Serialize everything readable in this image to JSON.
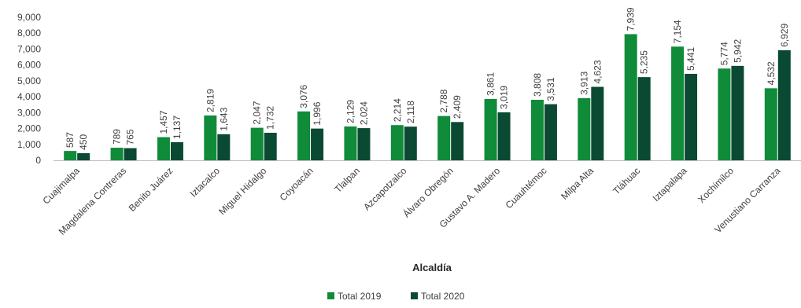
{
  "chart_data": {
    "type": "bar",
    "title": "",
    "xlabel": "Alcaldía",
    "ylabel": "",
    "ylim": [
      0,
      9000
    ],
    "yticks": [
      0,
      1000,
      2000,
      3000,
      4000,
      5000,
      6000,
      7000,
      8000,
      9000
    ],
    "ytick_labels": [
      "0",
      "1,000",
      "2,000",
      "3,000",
      "4,000",
      "5,000",
      "6,000",
      "7,000",
      "8,000",
      "9,000"
    ],
    "grid": false,
    "legend_position": "bottom-center",
    "categories": [
      "Cuajimalpa",
      "Magdalena Contreras",
      "Benito Juárez",
      "Iztacalco",
      "Miguel Hidalgo",
      "Coyoacán",
      "Tlalpan",
      "Azcapotzalco",
      "Álvaro Obregón",
      "Gustavo A. Madero",
      "Cuauhtémoc",
      "Milpa Alta",
      "Tláhuac",
      "Iztapalapa",
      "Xochimilco",
      "Venustiano Carranza"
    ],
    "series": [
      {
        "name": "Total 2019",
        "color": "#0f8b3a",
        "values": [
          587,
          789,
          1457,
          2819,
          2047,
          3076,
          2129,
          2214,
          2788,
          3861,
          3808,
          3913,
          7939,
          7154,
          5774,
          4532
        ],
        "labels": [
          "587",
          "789",
          "1,457",
          "2,819",
          "2,047",
          "3,076",
          "2,129",
          "2,214",
          "2,788",
          "3,861",
          "3,808",
          "3,913",
          "7,939",
          "7,154",
          "5,774",
          "4,532"
        ]
      },
      {
        "name": "Total 2020",
        "color": "#0b4a32",
        "values": [
          450,
          765,
          1137,
          1643,
          1732,
          1996,
          2024,
          2118,
          2409,
          3019,
          3531,
          4623,
          5235,
          5441,
          5942,
          6929
        ],
        "labels": [
          "450",
          "765",
          "1,137",
          "1,643",
          "1,732",
          "1,996",
          "2,024",
          "2,118",
          "2,409",
          "3,019",
          "3,531",
          "4,623",
          "5,235",
          "5,441",
          "5,942",
          "6,929"
        ]
      }
    ]
  }
}
